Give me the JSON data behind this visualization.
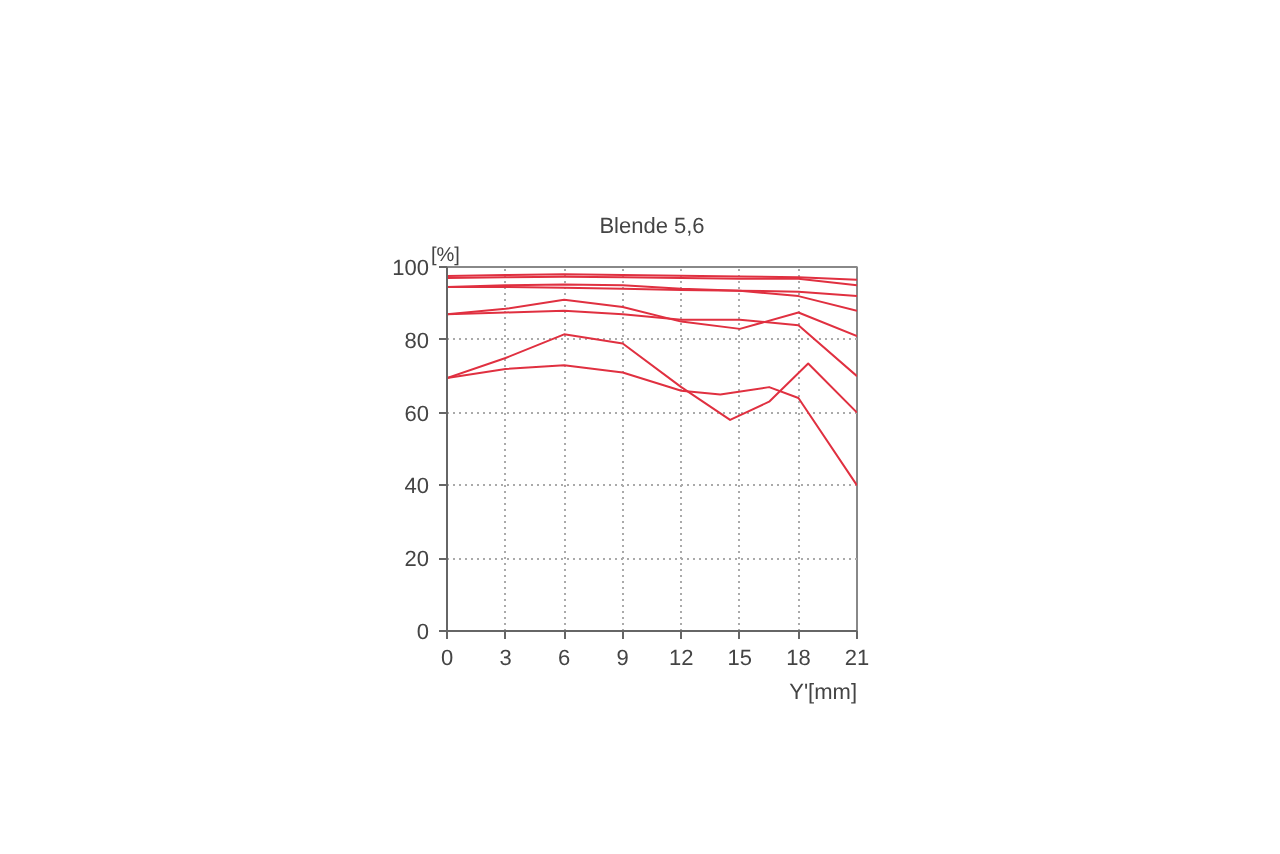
{
  "chart_data": {
    "type": "line",
    "title": "Blende 5,6",
    "ylabel": "[%]",
    "xlabel": "Y'[mm]",
    "x": [
      0,
      3,
      6,
      9,
      12,
      15,
      18,
      21
    ],
    "series": [
      {
        "color": "#e03040",
        "values": [
          97.5,
          97.8,
          98,
          97.8,
          97.6,
          97.4,
          97.2,
          96.5
        ]
      },
      {
        "color": "#e03040",
        "values": [
          97,
          97.2,
          97.3,
          97.2,
          97,
          96.8,
          96.8,
          95
        ]
      },
      {
        "color": "#e03040",
        "values": [
          94.5,
          94.5,
          94.3,
          94,
          93.7,
          93.5,
          93.2,
          92
        ]
      },
      {
        "color": "#e03040",
        "values": [
          94.5,
          95,
          95.2,
          95,
          94,
          93.5,
          92,
          88
        ]
      },
      {
        "color": "#e03040",
        "values": [
          87,
          88.5,
          91,
          89,
          85,
          83,
          87.5,
          81
        ]
      },
      {
        "color": "#e03040",
        "values": [
          87,
          87.5,
          88,
          87,
          85.5,
          85.5,
          84,
          70
        ]
      },
      {
        "color": "#e03040",
        "x": [
          0,
          3,
          6,
          9,
          12,
          14.5,
          16.5,
          18.5,
          21
        ],
        "values": [
          69.5,
          75,
          81.5,
          79,
          67,
          58,
          63,
          73.5,
          60
        ]
      },
      {
        "color": "#e03040",
        "x": [
          0,
          3,
          6,
          9,
          12,
          14,
          16.5,
          18,
          21
        ],
        "values": [
          69.5,
          72,
          73,
          71,
          66,
          65,
          67,
          64,
          40
        ]
      }
    ],
    "xlim": [
      0,
      21
    ],
    "xticks": [
      0,
      3,
      6,
      9,
      12,
      15,
      18,
      21
    ],
    "ylim": [
      0,
      100
    ],
    "yticks": [
      0,
      20,
      40,
      60,
      80,
      100
    ],
    "grid": true,
    "marker": "none",
    "line_style": "solid"
  }
}
